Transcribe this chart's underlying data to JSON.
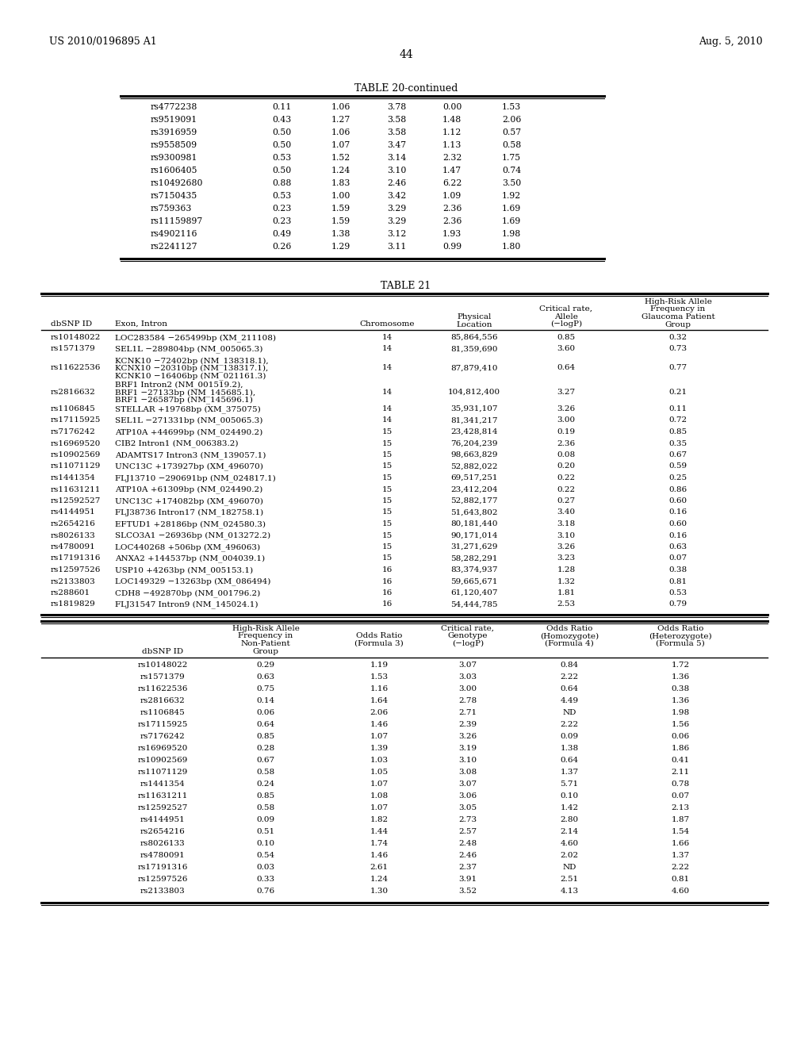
{
  "page_number": "44",
  "header_left": "US 2010/0196895 A1",
  "header_right": "Aug. 5, 2010",
  "background_color": "#ffffff",
  "table20_continued_title": "TABLE 20-continued",
  "table20_rows": [
    [
      "rs4772238",
      "0.11",
      "1.06",
      "3.78",
      "0.00",
      "1.53"
    ],
    [
      "rs9519091",
      "0.43",
      "1.27",
      "3.58",
      "1.48",
      "2.06"
    ],
    [
      "rs3916959",
      "0.50",
      "1.06",
      "3.58",
      "1.12",
      "0.57"
    ],
    [
      "rs9558509",
      "0.50",
      "1.07",
      "3.47",
      "1.13",
      "0.58"
    ],
    [
      "rs9300981",
      "0.53",
      "1.52",
      "3.14",
      "2.32",
      "1.75"
    ],
    [
      "rs1606405",
      "0.50",
      "1.24",
      "3.10",
      "1.47",
      "0.74"
    ],
    [
      "rs10492680",
      "0.88",
      "1.83",
      "2.46",
      "6.22",
      "3.50"
    ],
    [
      "rs7150435",
      "0.53",
      "1.00",
      "3.42",
      "1.09",
      "1.92"
    ],
    [
      "rs759363",
      "0.23",
      "1.59",
      "3.29",
      "2.36",
      "1.69"
    ],
    [
      "rs11159897",
      "0.23",
      "1.59",
      "3.29",
      "2.36",
      "1.69"
    ],
    [
      "rs4902116",
      "0.49",
      "1.38",
      "3.12",
      "1.93",
      "1.98"
    ],
    [
      "rs2241127",
      "0.26",
      "1.29",
      "3.11",
      "0.99",
      "1.80"
    ]
  ],
  "table21_title": "TABLE 21",
  "table21_rows": [
    [
      "rs10148022",
      "LOC283584 −265499bp (XM_211108)",
      "14",
      "85,864,556",
      "0.85",
      "0.32"
    ],
    [
      "rs1571379",
      "SEL1L −289804bp (NM_005065.3)",
      "14",
      "81,359,690",
      "3.60",
      "0.73"
    ],
    [
      "rs11622536",
      "KCNK10 −72402bp (NM_138318.1),\nKCNX10 −20310bp (NM_138317.1),\nKCNK10 −16406bp (NM_021161.3)",
      "14",
      "87,879,410",
      "0.64",
      "0.77"
    ],
    [
      "rs2816632",
      "BRF1 Intron2 (NM_001519.2),\nBRF1 −27133bp (NM_145685.1),\nBRF1 −26587bp (NM_145696.1)",
      "14",
      "104,812,400",
      "3.27",
      "0.21"
    ],
    [
      "rs1106845",
      "STELLAR +19768bp (XM_375075)",
      "14",
      "35,931,107",
      "3.26",
      "0.11"
    ],
    [
      "rs17115925",
      "SEL1L −271331bp (NM_005065.3)",
      "14",
      "81,341,217",
      "3.00",
      "0.72"
    ],
    [
      "rs7176242",
      "ATP10A +44699bp (NM_024490.2)",
      "15",
      "23,428,814",
      "0.19",
      "0.85"
    ],
    [
      "rs16969520",
      "CIB2 Intron1 (NM_006383.2)",
      "15",
      "76,204,239",
      "2.36",
      "0.35"
    ],
    [
      "rs10902569",
      "ADAMTS17 Intron3 (NM_139057.1)",
      "15",
      "98,663,829",
      "0.08",
      "0.67"
    ],
    [
      "rs11071129",
      "UNC13C +173927bp (XM_496070)",
      "15",
      "52,882,022",
      "0.20",
      "0.59"
    ],
    [
      "rs1441354",
      "FLJ13710 −290691bp (NM_024817.1)",
      "15",
      "69,517,251",
      "0.22",
      "0.25"
    ],
    [
      "rs11631211",
      "ATP10A +61309bp (NM_024490.2)",
      "15",
      "23,412,204",
      "0.22",
      "0.86"
    ],
    [
      "rs12592527",
      "UNC13C +174082bp (XM_496070)",
      "15",
      "52,882,177",
      "0.27",
      "0.60"
    ],
    [
      "rs4144951",
      "FLJ38736 Intron17 (NM_182758.1)",
      "15",
      "51,643,802",
      "3.40",
      "0.16"
    ],
    [
      "rs2654216",
      "EFTUD1 +28186bp (NM_024580.3)",
      "15",
      "80,181,440",
      "3.18",
      "0.60"
    ],
    [
      "rs8026133",
      "SLCO3A1 −26936bp (NM_013272.2)",
      "15",
      "90,171,014",
      "3.10",
      "0.16"
    ],
    [
      "rs4780091",
      "LOC440268 +506bp (XM_496063)",
      "15",
      "31,271,629",
      "3.26",
      "0.63"
    ],
    [
      "rs17191316",
      "ANXA2 +144537bp (NM_004039.1)",
      "15",
      "58,282,291",
      "3.23",
      "0.07"
    ],
    [
      "rs12597526",
      "USP10 +4263bp (NM_005153.1)",
      "16",
      "83,374,937",
      "1.28",
      "0.38"
    ],
    [
      "rs2133803",
      "LOC149329 −13263bp (XM_086494)",
      "16",
      "59,665,671",
      "1.32",
      "0.81"
    ],
    [
      "rs288601",
      "CDH8 −492870bp (NM_001796.2)",
      "16",
      "61,120,407",
      "1.81",
      "0.53"
    ],
    [
      "rs1819829",
      "FLJ31547 Intron9 (NM_145024.1)",
      "16",
      "54,444,785",
      "2.53",
      "0.79"
    ]
  ],
  "table21b_rows": [
    [
      "rs10148022",
      "0.29",
      "1.19",
      "3.07",
      "0.84",
      "1.72"
    ],
    [
      "rs1571379",
      "0.63",
      "1.53",
      "3.03",
      "2.22",
      "1.36"
    ],
    [
      "rs11622536",
      "0.75",
      "1.16",
      "3.00",
      "0.64",
      "0.38"
    ],
    [
      "rs2816632",
      "0.14",
      "1.64",
      "2.78",
      "4.49",
      "1.36"
    ],
    [
      "rs1106845",
      "0.06",
      "2.06",
      "2.71",
      "ND",
      "1.98"
    ],
    [
      "rs17115925",
      "0.64",
      "1.46",
      "2.39",
      "2.22",
      "1.56"
    ],
    [
      "rs7176242",
      "0.85",
      "1.07",
      "3.26",
      "0.09",
      "0.06"
    ],
    [
      "rs16969520",
      "0.28",
      "1.39",
      "3.19",
      "1.38",
      "1.86"
    ],
    [
      "rs10902569",
      "0.67",
      "1.03",
      "3.10",
      "0.64",
      "0.41"
    ],
    [
      "rs11071129",
      "0.58",
      "1.05",
      "3.08",
      "1.37",
      "2.11"
    ],
    [
      "rs1441354",
      "0.24",
      "1.07",
      "3.07",
      "5.71",
      "0.78"
    ],
    [
      "rs11631211",
      "0.85",
      "1.08",
      "3.06",
      "0.10",
      "0.07"
    ],
    [
      "rs12592527",
      "0.58",
      "1.07",
      "3.05",
      "1.42",
      "2.13"
    ],
    [
      "rs4144951",
      "0.09",
      "1.82",
      "2.73",
      "2.80",
      "1.87"
    ],
    [
      "rs2654216",
      "0.51",
      "1.44",
      "2.57",
      "2.14",
      "1.54"
    ],
    [
      "rs8026133",
      "0.10",
      "1.74",
      "2.48",
      "4.60",
      "1.66"
    ],
    [
      "rs4780091",
      "0.54",
      "1.46",
      "2.46",
      "2.02",
      "1.37"
    ],
    [
      "rs17191316",
      "0.03",
      "2.61",
      "2.37",
      "ND",
      "2.22"
    ],
    [
      "rs12597526",
      "0.33",
      "1.24",
      "3.91",
      "2.51",
      "0.81"
    ],
    [
      "rs2133803",
      "0.76",
      "1.30",
      "3.52",
      "4.13",
      "4.60"
    ]
  ]
}
